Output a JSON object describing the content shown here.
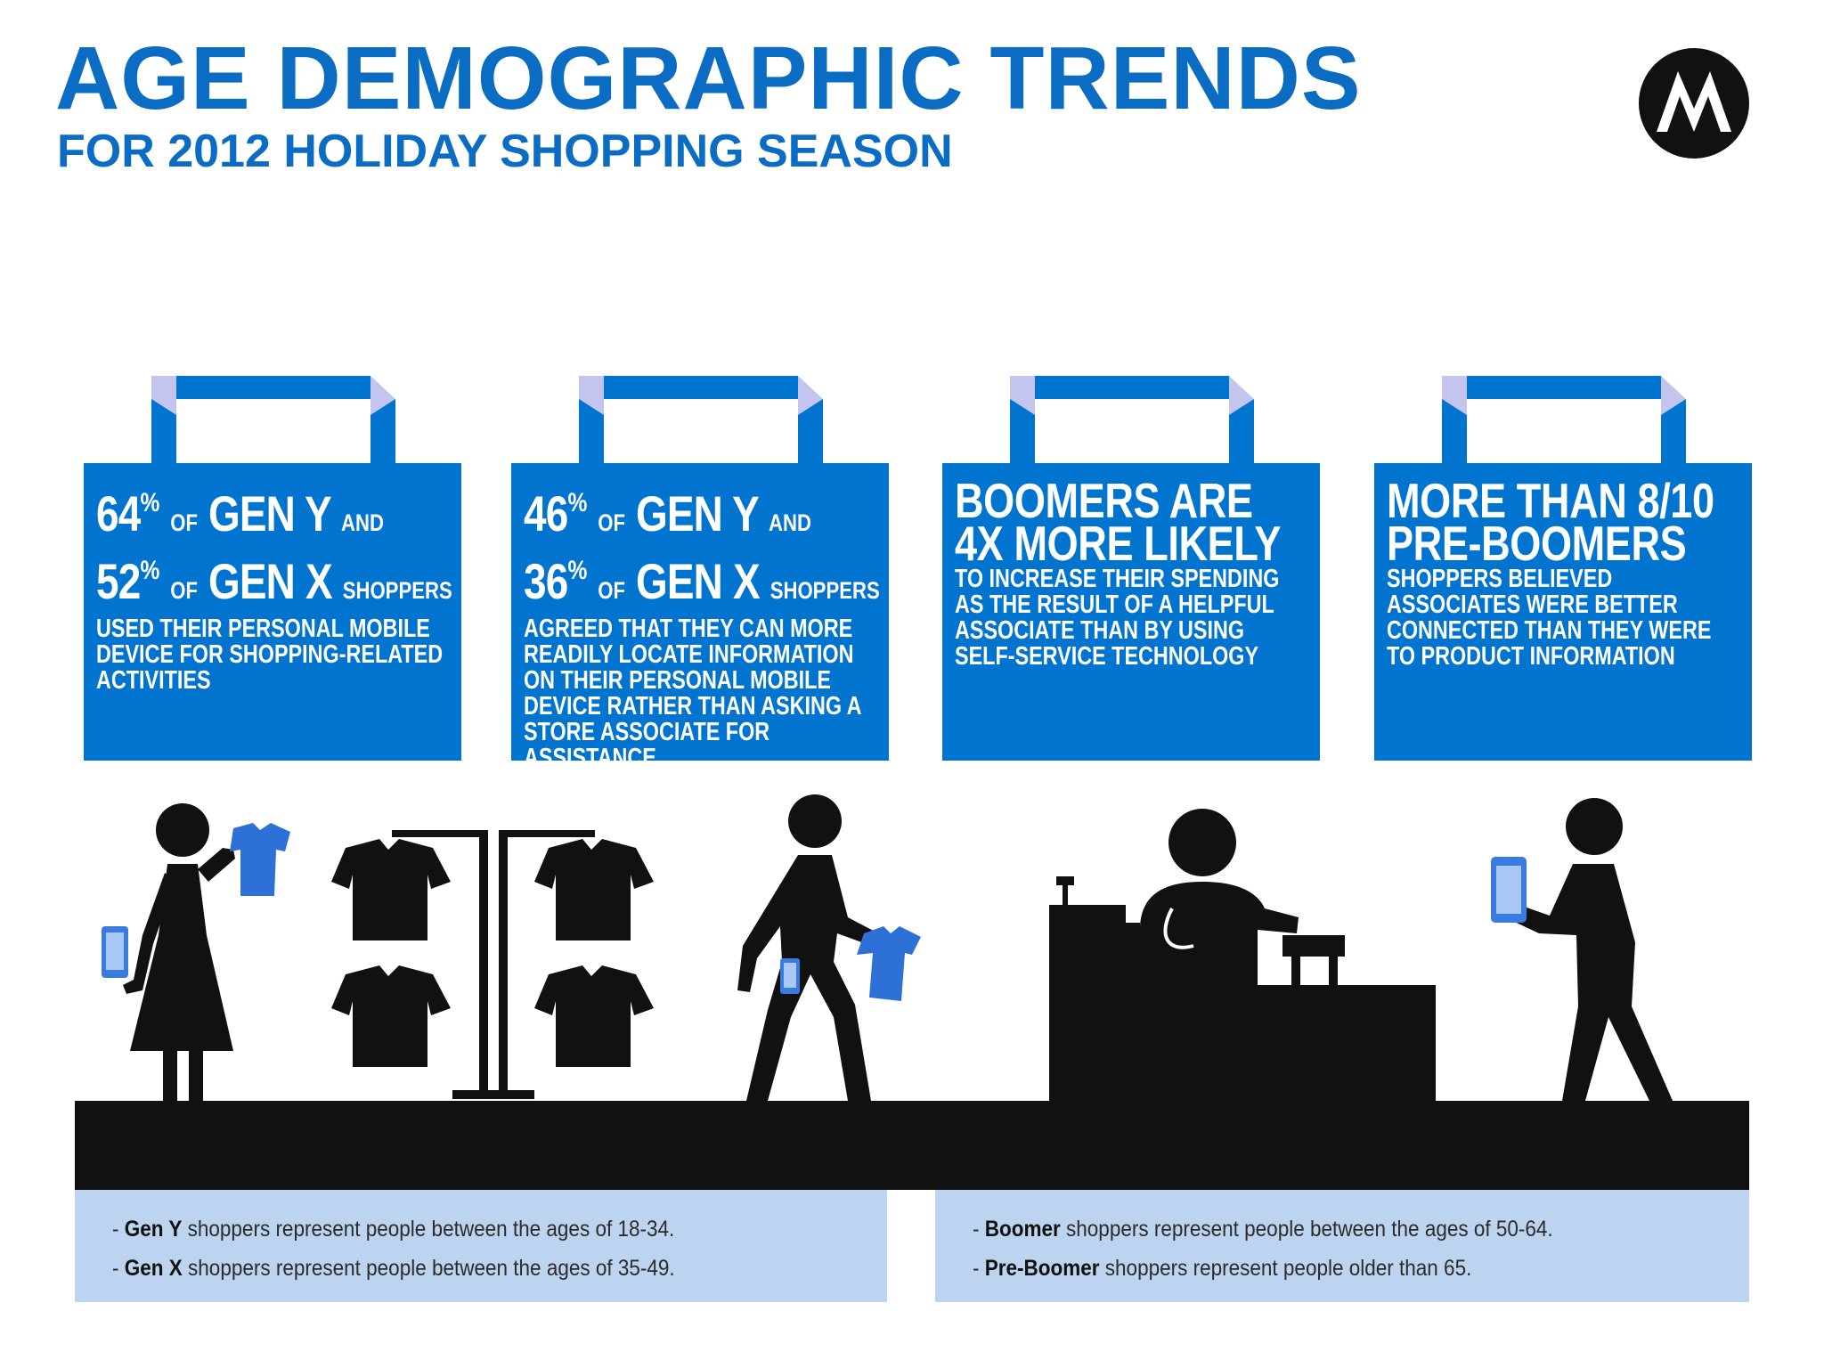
{
  "header": {
    "title": "AGE DEMOGRAPHIC TRENDS",
    "subtitle": "FOR 2012 HOLIDAY SHOPPING SEASON",
    "logo_icon": "motorola-logo-icon"
  },
  "colors": {
    "brand_blue": "#0074cf",
    "title_blue": "#0a6cc2",
    "note_bg": "#bcd4ef",
    "handle_light": "#c3c5ee"
  },
  "bags": [
    {
      "line1": {
        "pct": "64",
        "pct_sign": "%",
        "of": "OF",
        "group": "GEN Y",
        "suffix": "AND"
      },
      "line2": {
        "pct": "52",
        "pct_sign": "%",
        "of": "OF",
        "group": "GEN X",
        "suffix": "SHOPPERS"
      },
      "text": "USED THEIR PERSONAL MOBILE DEVICE FOR SHOPPING-RELATED ACTIVITIES"
    },
    {
      "line1": {
        "pct": "46",
        "pct_sign": "%",
        "of": "OF",
        "group": "GEN Y",
        "suffix": "AND"
      },
      "line2": {
        "pct": "36",
        "pct_sign": "%",
        "of": "OF",
        "group": "GEN X",
        "suffix": "SHOPPERS"
      },
      "text": "AGREED THAT THEY CAN MORE READILY LOCATE INFORMATION ON THEIR PERSONAL MOBILE DEVICE RATHER THAN ASKING A STORE ASSOCIATE FOR ASSISTANCE"
    },
    {
      "head1": "BOOMERS ARE",
      "head2": "4X MORE LIKELY",
      "text": "TO INCREASE THEIR SPENDING AS THE RESULT OF A HELPFUL ASSOCIATE THAN BY USING SELF-SERVICE TECHNOLOGY"
    },
    {
      "head1": "MORE THAN 8/10",
      "head2": "PRE-BOOMERS",
      "text": "SHOPPERS BELIEVED ASSOCIATES WERE BETTER CONNECTED THAN THEY WERE TO PRODUCT INFORMATION"
    }
  ],
  "notes": {
    "left": [
      {
        "dash": "-",
        "term": "Gen Y",
        "text": "shoppers represent people between the ages of 18-34."
      },
      {
        "dash": "-",
        "term": "Gen X",
        "text": "shoppers represent people between the ages of 35-49."
      }
    ],
    "right": [
      {
        "dash": "-",
        "term": "Boomer",
        "text": "shoppers represent people between the ages of 50-64."
      },
      {
        "dash": "-",
        "term": "Pre-Boomer",
        "text": "shoppers represent people older than 65."
      }
    ]
  }
}
